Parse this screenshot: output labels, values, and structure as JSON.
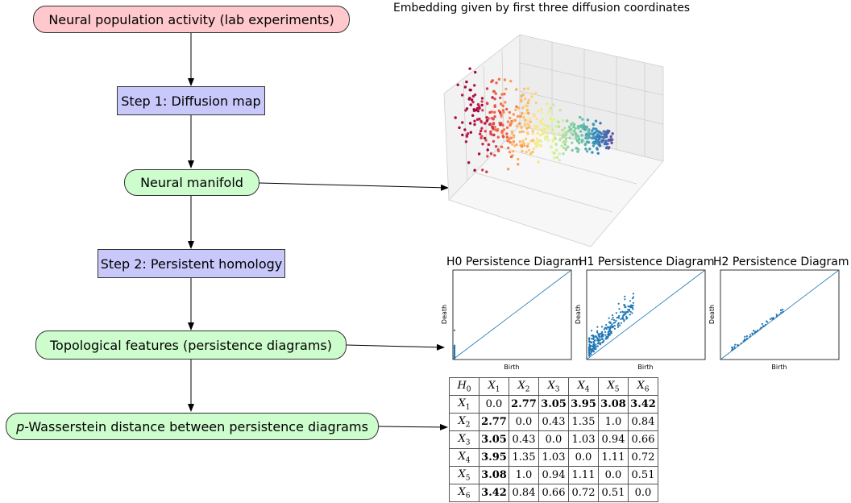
{
  "flowchart": {
    "nodes": [
      {
        "id": "neural-population",
        "label": "Neural population activity (lab experiments)"
      },
      {
        "id": "step1",
        "label": "Step 1: Diffusion map"
      },
      {
        "id": "neural-manifold",
        "label": "Neural manifold"
      },
      {
        "id": "step2",
        "label": "Step 2: Persistent homology"
      },
      {
        "id": "topological-features",
        "label": "Topological features (persistence diagrams)"
      },
      {
        "id": "wasserstein",
        "label_prefix": "p",
        "label_rest": "-Wasserstein distance between persistence diagrams"
      }
    ],
    "colors": {
      "red": "#ffc8cc",
      "green": "#cdfccd",
      "blue": "#c8c8fb",
      "arrow": "#000000"
    }
  },
  "embedding": {
    "title": "Embedding given by first three diffusion coordinates",
    "colormap": "Spectral"
  },
  "persistence": {
    "diagrams": [
      {
        "title": "H0 Persistence Diagram",
        "xlabel": "Birth",
        "ylabel": "Death"
      },
      {
        "title": "H1 Persistence Diagram",
        "xlabel": "Birth",
        "ylabel": "Death"
      },
      {
        "title": "H2 Persistence Diagram",
        "xlabel": "Birth",
        "ylabel": "Death"
      }
    ],
    "point_color": "#1f77b4"
  },
  "distance_table": {
    "corner": "H",
    "corner_sub": "0",
    "labels": [
      "X",
      "X",
      "X",
      "X",
      "X",
      "X"
    ],
    "label_subs": [
      "1",
      "2",
      "3",
      "4",
      "5",
      "6"
    ],
    "rows": [
      [
        "0.0",
        "2.77",
        "3.05",
        "3.95",
        "3.08",
        "3.42"
      ],
      [
        "2.77",
        "0.0",
        "0.43",
        "1.35",
        "1.0",
        "0.84"
      ],
      [
        "3.05",
        "0.43",
        "0.0",
        "1.03",
        "0.94",
        "0.66"
      ],
      [
        "3.95",
        "1.35",
        "1.03",
        "0.0",
        "1.11",
        "0.72"
      ],
      [
        "3.08",
        "1.0",
        "0.94",
        "1.11",
        "0.0",
        "0.51"
      ],
      [
        "3.42",
        "0.84",
        "0.66",
        "0.72",
        "0.51",
        "0.0"
      ]
    ],
    "bold": [
      [
        false,
        true,
        true,
        true,
        true,
        true
      ],
      [
        true,
        false,
        false,
        false,
        false,
        false
      ],
      [
        true,
        false,
        false,
        false,
        false,
        false
      ],
      [
        true,
        false,
        false,
        false,
        false,
        false
      ],
      [
        true,
        false,
        false,
        false,
        false,
        false
      ],
      [
        true,
        false,
        false,
        false,
        false,
        false
      ]
    ]
  }
}
